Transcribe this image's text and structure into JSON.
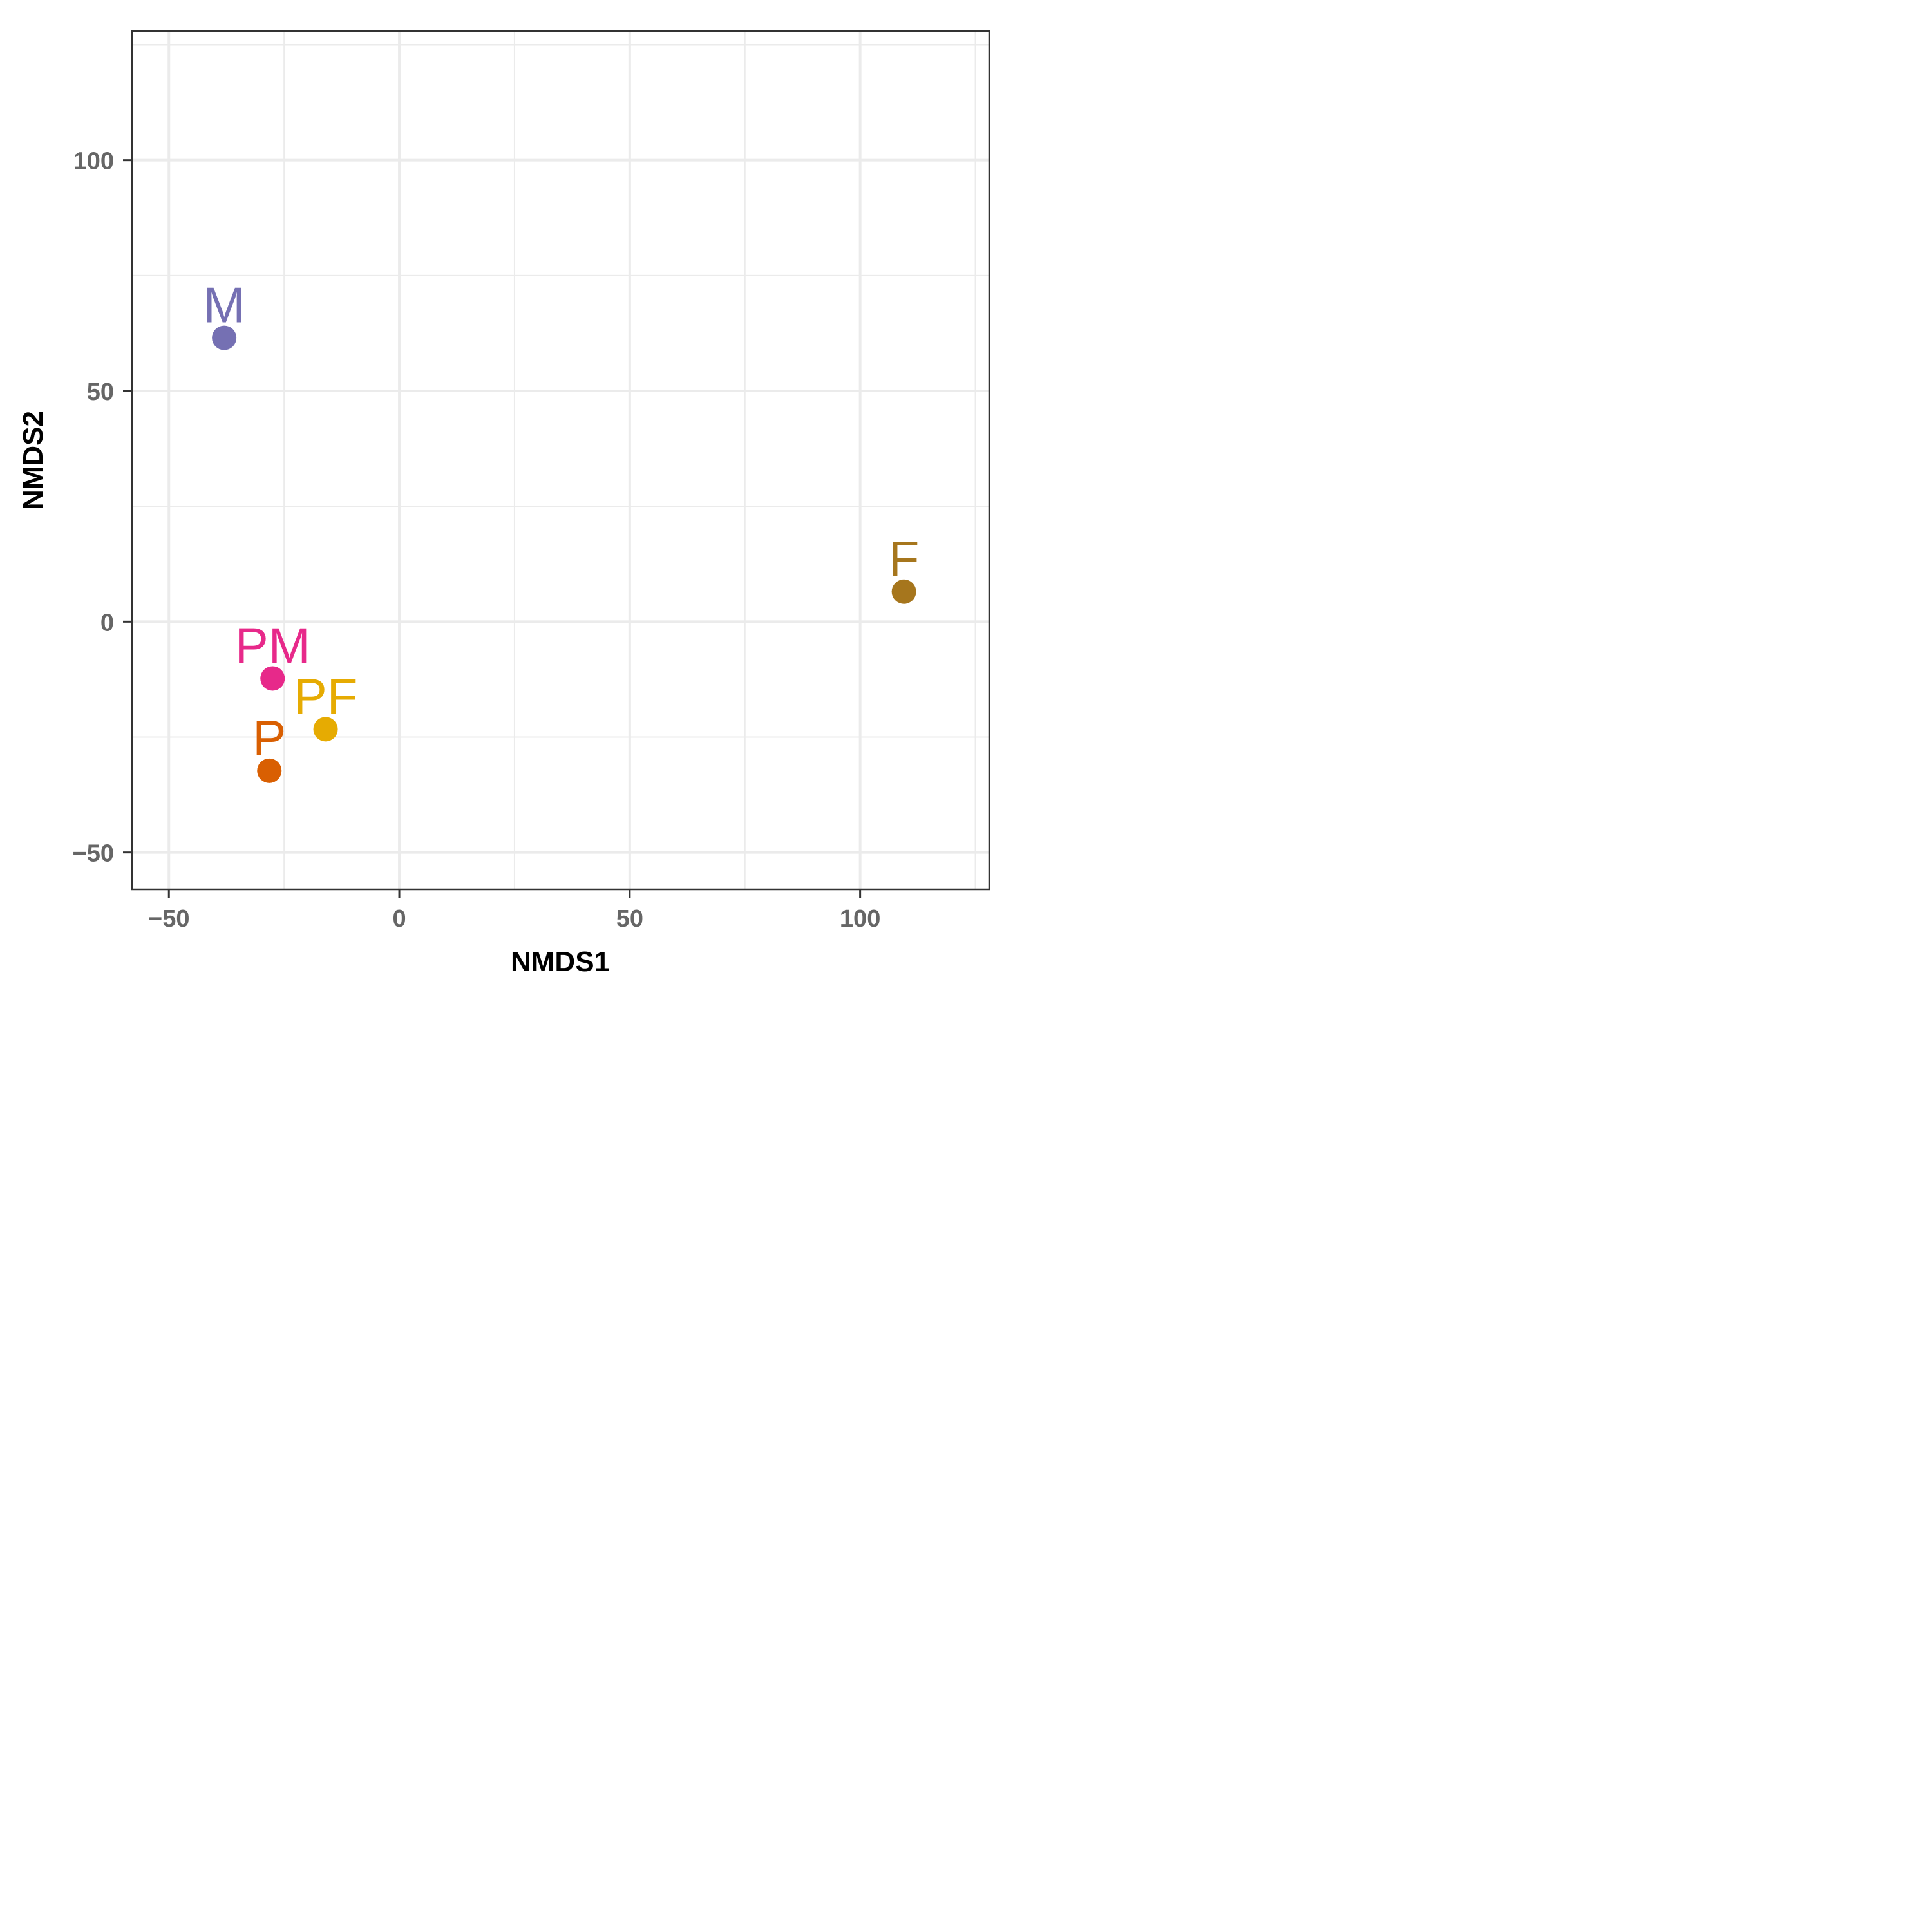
{
  "chart_data": {
    "type": "scatter",
    "title": "",
    "xlabel": "NMDS1",
    "ylabel": "NMDS2",
    "xlim": [
      -58,
      128
    ],
    "ylim": [
      -58,
      128
    ],
    "x_ticks": [
      -50,
      0,
      50,
      100
    ],
    "y_ticks": [
      -50,
      0,
      50,
      100
    ],
    "x_tick_labels": [
      "−50",
      "0",
      "50",
      "100"
    ],
    "y_tick_labels": [
      "−50",
      "0",
      "50",
      "100"
    ],
    "grid": true,
    "legend": "none",
    "points": [
      {
        "label": "M",
        "x": -38,
        "y": 61.5,
        "color": "#7570B3"
      },
      {
        "label": "F",
        "x": 109.5,
        "y": 6.5,
        "color": "#A6761D"
      },
      {
        "label": "PM",
        "x": -27.5,
        "y": -12.3,
        "color": "#E7298A"
      },
      {
        "label": "PF",
        "x": -16,
        "y": -23.3,
        "color": "#E6AB02"
      },
      {
        "label": "P",
        "x": -28.2,
        "y": -32.3,
        "color": "#D95F02"
      }
    ]
  }
}
